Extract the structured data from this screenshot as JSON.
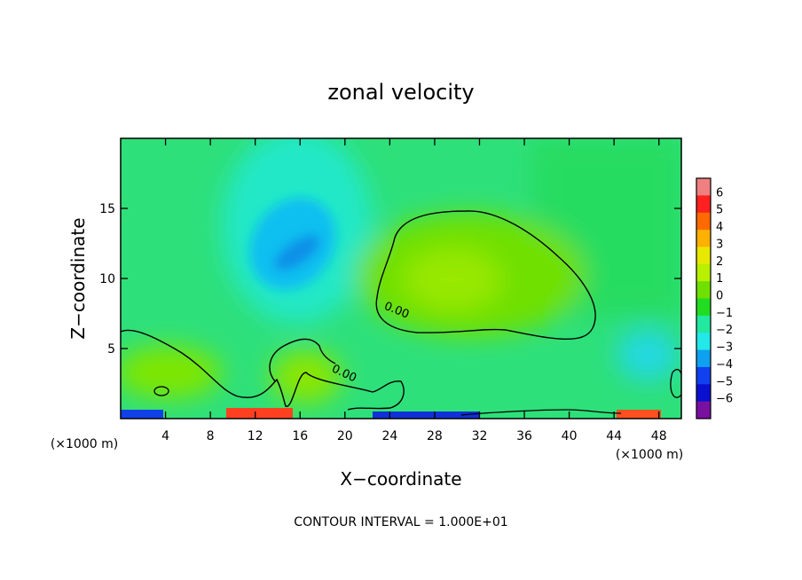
{
  "chart_data": {
    "type": "heatmap",
    "title": "zonal velocity",
    "xlabel": "X−coordinate",
    "ylabel": "Z−coordinate",
    "x_unit_left": "(×1000 m)",
    "x_unit_right": "(×1000 m)",
    "xlim": [
      0,
      50
    ],
    "ylim": [
      0,
      20
    ],
    "x_ticks": [
      4,
      8,
      12,
      16,
      20,
      24,
      28,
      32,
      36,
      40,
      44,
      48
    ],
    "y_ticks": [
      5,
      10,
      15
    ],
    "contour_interval_text": "CONTOUR INTERVAL = 1.000E+01",
    "contour_labels": [
      {
        "text": "0.00",
        "x": 24.5,
        "y": 7.5
      },
      {
        "text": "0.00",
        "x": 19.8,
        "y": 3.0
      }
    ],
    "colorbar": {
      "labels": [
        "6",
        "5",
        "4",
        "3",
        "2",
        "1",
        "0",
        "−1",
        "−2",
        "−3",
        "−4",
        "−5",
        "−6"
      ],
      "colors": [
        "#f08080",
        "#ff2020",
        "#ff6a00",
        "#ffb000",
        "#e8e800",
        "#b8f000",
        "#6fe000",
        "#22dc22",
        "#22e8a0",
        "#22e8e8",
        "#10a0f0",
        "#1040f0",
        "#0a10d0",
        "#7a10a0"
      ]
    },
    "field_features": [
      {
        "name": "background",
        "value": -0.5,
        "color": "#2ee07a"
      },
      {
        "name": "negative core",
        "x": 16,
        "y": 12,
        "value": -3.0
      },
      {
        "name": "positive region",
        "x": 30,
        "y": 10,
        "value": 0.6
      },
      {
        "name": "surface jet positive",
        "x": 12,
        "y": 0.2,
        "value": 5
      },
      {
        "name": "surface jet negative",
        "x": 2,
        "y": 0.2,
        "value": -4
      }
    ]
  }
}
